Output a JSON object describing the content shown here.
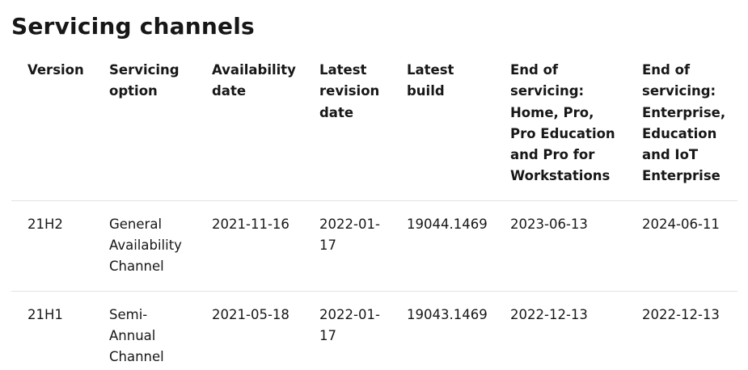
{
  "page": {
    "heading": "Servicing channels"
  },
  "table": {
    "headers": [
      "Version",
      "Servicing option",
      "Availability date",
      "Latest revision date",
      "Latest build",
      "End of servicing: Home, Pro, Pro Education and Pro for Workstations",
      "End of servicing: Enterprise, Education and IoT Enterprise"
    ],
    "rows": [
      [
        "21H2",
        "General Availability Channel",
        "2021-11-16",
        "2022-01-17",
        "19044.1469",
        "2023-06-13",
        "2024-06-11"
      ],
      [
        "21H1",
        "Semi-Annual Channel",
        "2021-05-18",
        "2022-01-17",
        "19043.1469",
        "2022-12-13",
        "2022-12-13"
      ]
    ]
  }
}
